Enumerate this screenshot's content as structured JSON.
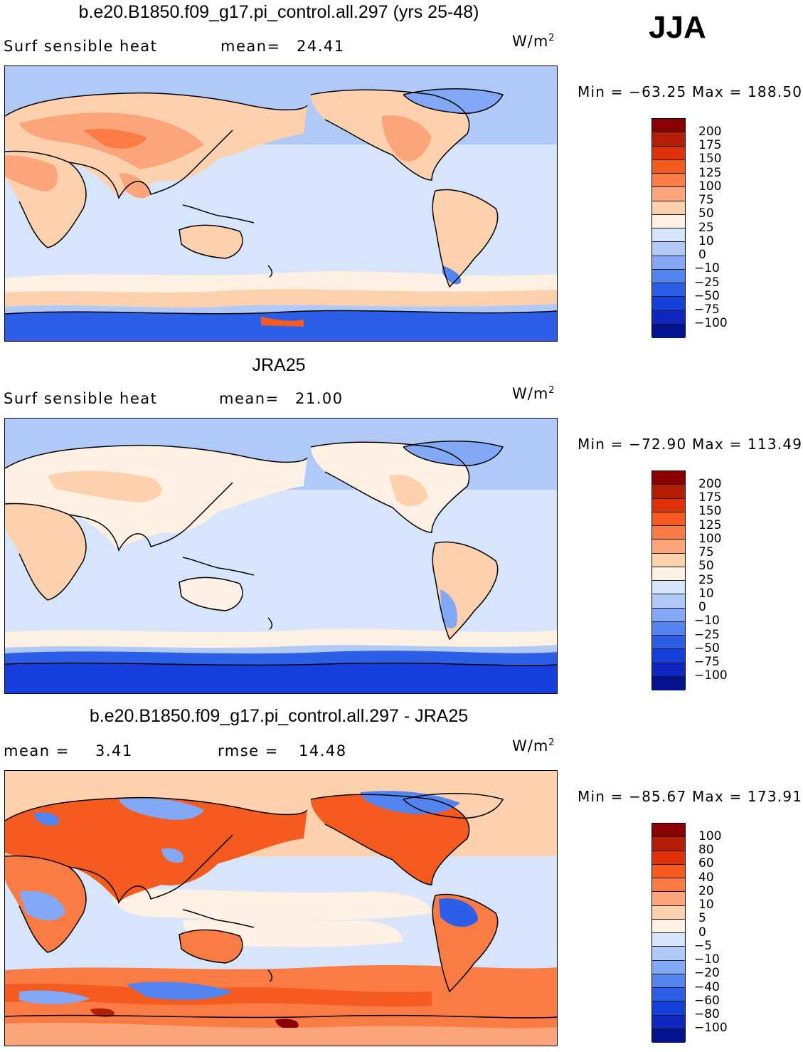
{
  "season": "JJA",
  "panels": [
    {
      "title": "b.e20.B1850.f09_g17.pi_control.all.297 (yrs 25-48)",
      "left_label": "Surf  sensible  heat",
      "stat_label": "mean=",
      "stat_value": "24.41",
      "stat2_label": "",
      "stat2_value": "",
      "units": "W/m",
      "units_sup": "2",
      "min_label": "Min  =",
      "min_value": "−63.25",
      "max_label": "Max  =",
      "max_value": "188.50",
      "colorbar_labels": [
        "200",
        "175",
        "150",
        "125",
        "100",
        "75",
        "50",
        "25",
        "10",
        "0",
        "−10",
        "−25",
        "−50",
        "−75",
        "−100"
      ],
      "colorbar_colors": [
        "#8b0000",
        "#b51e04",
        "#e0320a",
        "#f55a1e",
        "#fb7b45",
        "#fca47a",
        "#fdd1ad",
        "#fef0e2",
        "#d6e5fb",
        "#b0c9f7",
        "#83a8f5",
        "#5484f0",
        "#2c5fe8",
        "#163edd",
        "#0f26c0",
        "#04128f"
      ]
    },
    {
      "title": "JRA25",
      "left_label": "Surf  sensible  heat",
      "stat_label": "mean=",
      "stat_value": "21.00",
      "stat2_label": "",
      "stat2_value": "",
      "units": "W/m",
      "units_sup": "2",
      "min_label": "Min  =",
      "min_value": "−72.90",
      "max_label": "Max  =",
      "max_value": "113.49",
      "colorbar_labels": [
        "200",
        "175",
        "150",
        "125",
        "100",
        "75",
        "50",
        "25",
        "10",
        "0",
        "−10",
        "−25",
        "−50",
        "−75",
        "−100"
      ],
      "colorbar_colors": [
        "#8b0000",
        "#b51e04",
        "#e0320a",
        "#f55a1e",
        "#fb7b45",
        "#fca47a",
        "#fdd1ad",
        "#fef0e2",
        "#d6e5fb",
        "#b0c9f7",
        "#83a8f5",
        "#5484f0",
        "#2c5fe8",
        "#163edd",
        "#0f26c0",
        "#04128f"
      ]
    },
    {
      "title": "b.e20.B1850.f09_g17.pi_control.all.297 - JRA25",
      "left_label": "mean  =",
      "stat_label": "",
      "stat_value": "3.41",
      "stat2_label": "rmse  =",
      "stat2_value": "14.48",
      "units": "W/m",
      "units_sup": "2",
      "min_label": "Min  =",
      "min_value": "−85.67",
      "max_label": "Max  =",
      "max_value": "173.91",
      "colorbar_labels": [
        "100",
        "80",
        "60",
        "40",
        "20",
        "10",
        "5",
        "0",
        "−5",
        "−10",
        "−20",
        "−40",
        "−60",
        "−80",
        "−100"
      ],
      "colorbar_colors": [
        "#8b0000",
        "#b51e04",
        "#e0320a",
        "#f55a1e",
        "#fb7b45",
        "#fca47a",
        "#fdd1ad",
        "#fef0e2",
        "#d6e5fb",
        "#b0c9f7",
        "#83a8f5",
        "#5484f0",
        "#2c5fe8",
        "#163edd",
        "#0f26c0",
        "#04128f"
      ]
    }
  ]
}
